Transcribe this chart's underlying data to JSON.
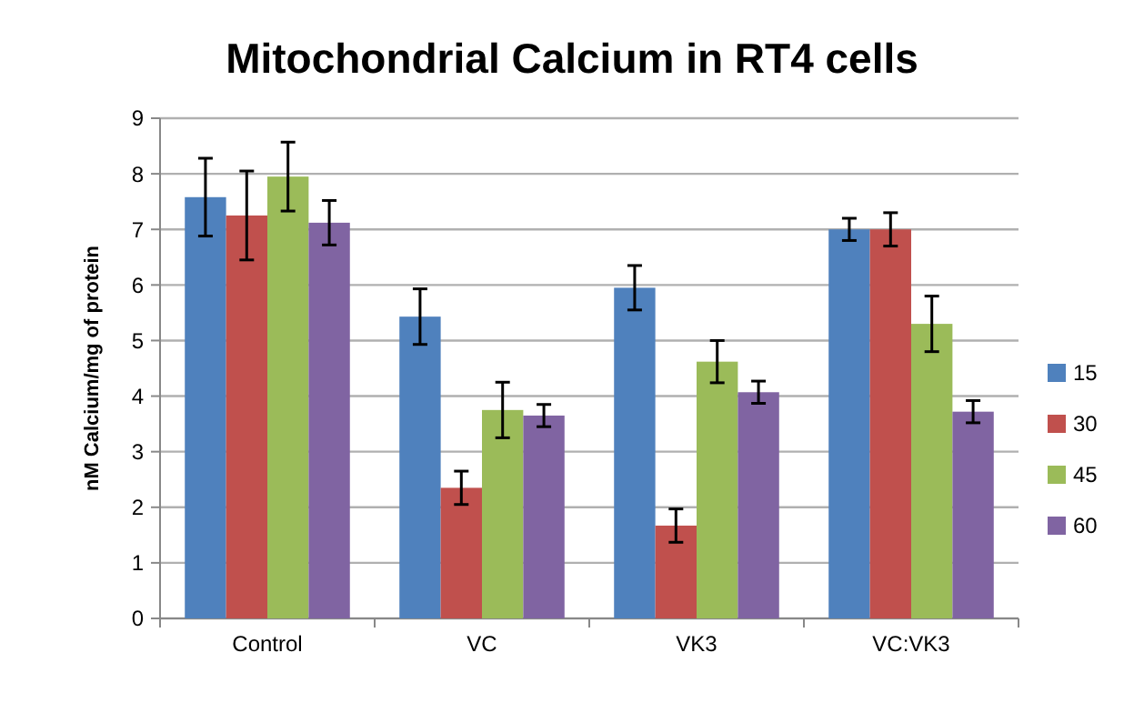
{
  "chart_data": {
    "type": "bar",
    "title": "Mitochondrial Calcium in RT4 cells",
    "ylabel": "nM Calcium/mg of protein",
    "categories": [
      "Control",
      "VC",
      "VK3",
      "VC:VK3"
    ],
    "series": [
      {
        "name": "15",
        "color": "#4f81bd",
        "values": [
          7.58,
          5.43,
          5.95,
          7.0
        ],
        "errors": [
          0.7,
          0.5,
          0.4,
          0.2
        ]
      },
      {
        "name": "30",
        "color": "#c0504d",
        "values": [
          7.25,
          2.35,
          1.67,
          7.0
        ],
        "errors": [
          0.8,
          0.3,
          0.3,
          0.3
        ]
      },
      {
        "name": "45",
        "color": "#9bbb59",
        "values": [
          7.95,
          3.75,
          4.62,
          5.3
        ],
        "errors": [
          0.62,
          0.5,
          0.38,
          0.5
        ]
      },
      {
        "name": "60",
        "color": "#8064a2",
        "values": [
          7.12,
          3.65,
          4.07,
          3.72
        ],
        "errors": [
          0.4,
          0.2,
          0.2,
          0.2
        ]
      }
    ],
    "ylim": [
      0,
      9
    ],
    "yticks": [
      0,
      1,
      2,
      3,
      4,
      5,
      6,
      7,
      8,
      9
    ],
    "grid": "y",
    "legend": "right"
  }
}
